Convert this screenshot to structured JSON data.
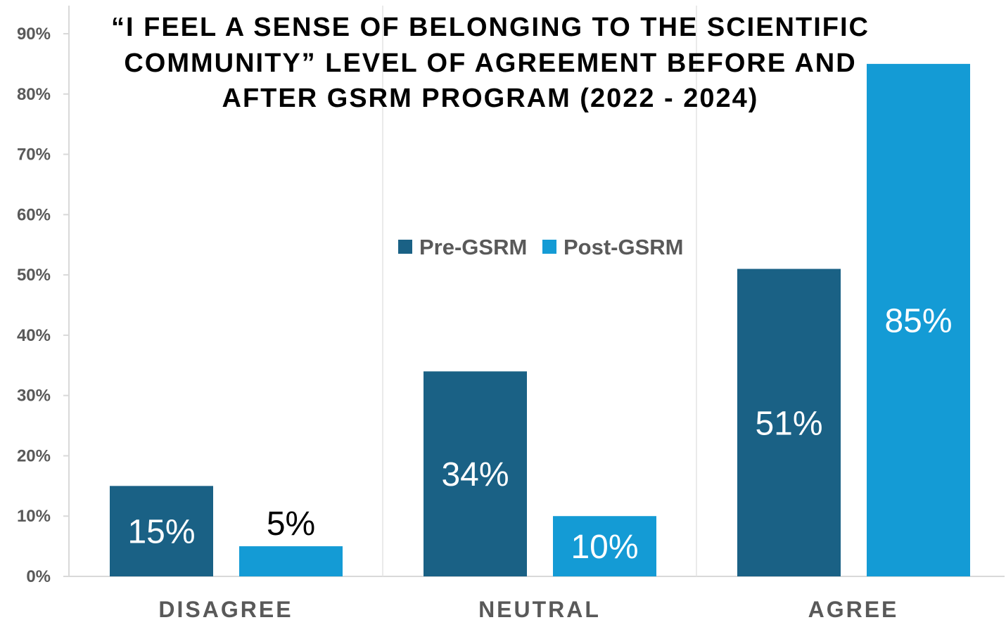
{
  "chart_data": {
    "type": "bar",
    "title_lines": [
      "“I FEEL A SENSE OF BELONGING TO THE SCIENTIFIC",
      "COMMUNITY” LEVEL OF AGREEMENT BEFORE AND",
      "AFTER GSRM PROGRAM (2022 - 2024)"
    ],
    "categories": [
      "DISAGREE",
      "NEUTRAL",
      "AGREE"
    ],
    "series": [
      {
        "name": "Pre-GSRM",
        "values": [
          15,
          34,
          51
        ],
        "color": "#1a6185",
        "labels": [
          "15%",
          "34%",
          "51%"
        ],
        "label_color": "#ffffff"
      },
      {
        "name": "Post-GSRM",
        "values": [
          5,
          10,
          85
        ],
        "color": "#149bd5",
        "labels": [
          "5%",
          "10%",
          "85%"
        ],
        "label_color": "#ffffff"
      }
    ],
    "y_ticks": [
      "0%",
      "10%",
      "20%",
      "30%",
      "40%",
      "50%",
      "60%",
      "70%",
      "80%",
      "90%"
    ],
    "ylim": [
      0,
      90
    ],
    "grid": "vertical separators between categories",
    "legend": {
      "placement": "center",
      "entries": [
        "Pre-GSRM",
        "Post-GSRM"
      ]
    }
  }
}
